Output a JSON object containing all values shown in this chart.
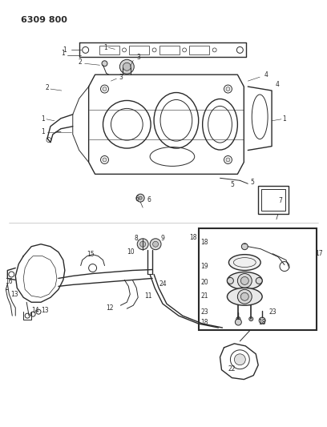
{
  "title": "6309 800",
  "bg_color": "#ffffff",
  "line_color": "#2a2a2a",
  "fig_width": 4.08,
  "fig_height": 5.33,
  "dpi": 100,
  "lw": 0.7,
  "lw_thick": 1.0,
  "label_fs": 5.5
}
